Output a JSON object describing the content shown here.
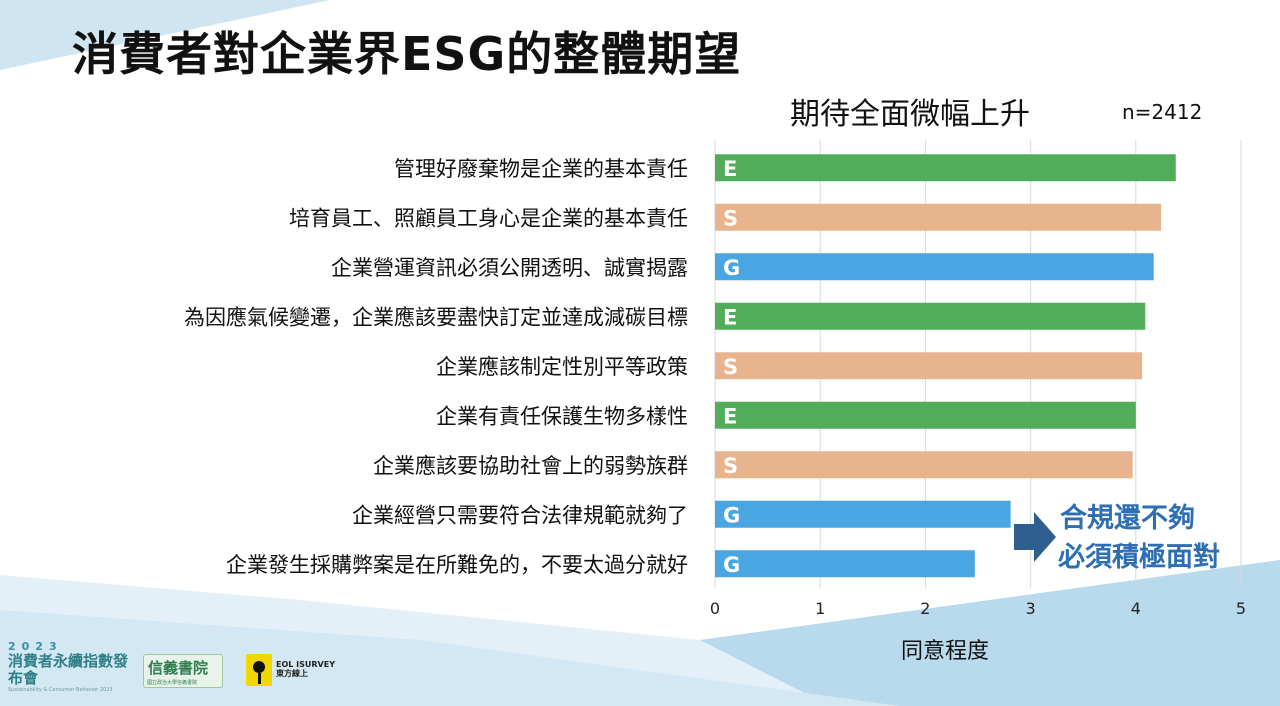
{
  "slide": {
    "title": "消費者對企業界ESG的整體期望"
  },
  "chart_data": {
    "type": "bar",
    "orientation": "horizontal",
    "title": "期待全面微幅上升",
    "sample_size": "n=2412",
    "xlabel": "同意程度",
    "xlim": [
      0,
      5
    ],
    "x_ticks": [
      "0",
      "1",
      "2",
      "3",
      "4",
      "5"
    ],
    "grid": true,
    "categories": [
      "管理好廢棄物是企業的基本責任",
      "培育員工、照顧員工身心是企業的基本責任",
      "企業營運資訊必須公開透明、誠實揭露",
      "為因應氣候變遷，企業應該要盡快訂定並達成減碳目標",
      "企業應該制定性別平等政策",
      "企業有責任保護生物多樣性",
      "企業應該要協助社會上的弱勢族群",
      "企業經營只需要符合法律規範就夠了",
      "企業發生採購弊案是在所難免的，不要太過分就好"
    ],
    "values": [
      4.38,
      4.24,
      4.17,
      4.09,
      4.06,
      4.0,
      3.97,
      2.81,
      2.47
    ],
    "esg_tags": [
      "E",
      "S",
      "G",
      "E",
      "S",
      "E",
      "S",
      "G",
      "G"
    ],
    "tag_colors": {
      "E": "#52ad5a",
      "S": "#e8b48d",
      "G": "#4aa6e2"
    },
    "annotation": {
      "lines": [
        "合規還不夠",
        "必須積極面對"
      ],
      "color": "#2e6fb4",
      "arrow_color": "#2f5f8f"
    }
  },
  "footer": {
    "event_year": "2023",
    "event_name": "消費者永續指數發布會",
    "event_subtitle": "Sustainability & Consumer Behavior 2023",
    "partner1_name": "信義書院",
    "partner1_sub": "國立政治大學信義書院",
    "partner2_name": "EOL ISURVEY",
    "partner2_sub": "東方線上"
  }
}
